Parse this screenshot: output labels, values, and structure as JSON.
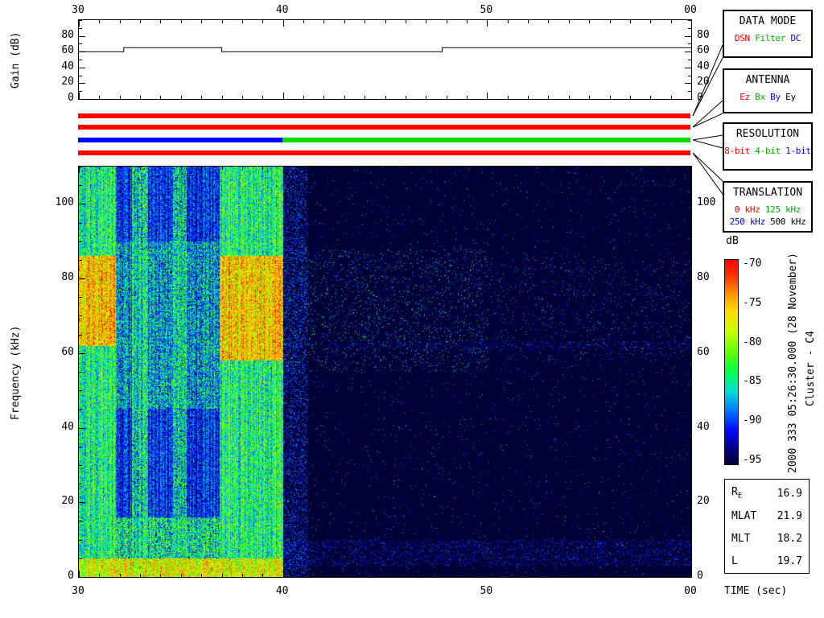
{
  "time_axis_label": "TIME (sec)",
  "side_text": {
    "datetime": "2000 333 05:26:30.000 (28 November)",
    "spacecraft": "Cluster - C4"
  },
  "control_boxes": [
    {
      "id": "data-mode",
      "title": "DATA MODE",
      "lines": [
        [
          {
            "text": "DSN",
            "color": "#ff0000"
          },
          {
            "text": "Filter",
            "color": "#00a800"
          },
          {
            "text": "DC",
            "color": "#0000ff"
          }
        ]
      ]
    },
    {
      "id": "antenna",
      "title": "ANTENNA",
      "lines": [
        [
          {
            "text": "Ez",
            "color": "#ff0000"
          },
          {
            "text": "Bx",
            "color": "#00a800"
          },
          {
            "text": "By",
            "color": "#0000ff"
          },
          {
            "text": "Ey",
            "color": "#000000"
          }
        ]
      ]
    },
    {
      "id": "resolution",
      "title": "RESOLUTION",
      "lines": [
        [
          {
            "text": "8-bit",
            "color": "#ff0000"
          },
          {
            "text": "4-bit",
            "color": "#00a800"
          },
          {
            "text": "1-bit",
            "color": "#0000ff"
          }
        ]
      ]
    },
    {
      "id": "translation",
      "title": "TRANSLATION",
      "lines": [
        [
          {
            "text": "0 kHz",
            "color": "#ff0000"
          },
          {
            "text": "125 kHz",
            "color": "#00a800"
          }
        ],
        [
          {
            "text": "250 kHz",
            "color": "#0000ff"
          },
          {
            "text": "500 kHz",
            "color": "#000000"
          }
        ]
      ]
    }
  ],
  "status_bars": [
    {
      "name": "data-mode-bar",
      "segments": [
        {
          "from": 30,
          "to": 60,
          "color": "#ff0000"
        }
      ]
    },
    {
      "name": "antenna-bar",
      "segments": [
        {
          "from": 30,
          "to": 60,
          "color": "#ff0000"
        }
      ]
    },
    {
      "name": "resolution-bar",
      "segments": [
        {
          "from": 30,
          "to": 40,
          "color": "#0000ff"
        },
        {
          "from": 40,
          "to": 60,
          "color": "#00dd00"
        }
      ]
    },
    {
      "name": "translation-bar",
      "segments": [
        {
          "from": 30,
          "to": 60,
          "color": "#ff0000"
        }
      ]
    }
  ],
  "orbit_box": {
    "rows": [
      {
        "label": "R",
        "sub": "E",
        "value": "16.9"
      },
      {
        "label": "MLAT",
        "value": "21.9"
      },
      {
        "label": "MLT",
        "value": "18.2"
      },
      {
        "label": "L",
        "value": "19.7"
      }
    ]
  },
  "chart_data": [
    {
      "type": "line",
      "name": "agc-gain",
      "ylabel": "Gain (dB)",
      "xlim": [
        30,
        60
      ],
      "ylim": [
        0,
        100
      ],
      "x_ticks": [
        {
          "v": 30,
          "label": "30"
        },
        {
          "v": 40,
          "label": "40"
        },
        {
          "v": 50,
          "label": "50"
        },
        {
          "v": 60,
          "label": "00"
        }
      ],
      "x_minor_step": 1,
      "y_ticks": [
        {
          "v": 0,
          "label": "0"
        },
        {
          "v": 20,
          "label": "20"
        },
        {
          "v": 40,
          "label": "40"
        },
        {
          "v": 60,
          "label": "60"
        },
        {
          "v": 80,
          "label": "80"
        }
      ],
      "y_minor_step": 10,
      "series": [
        {
          "name": "gain",
          "x": [
            30,
            32.2,
            32.2,
            37,
            37,
            47.8,
            47.8,
            60
          ],
          "y": [
            60,
            60,
            65,
            65,
            60,
            60,
            65,
            65
          ]
        }
      ]
    },
    {
      "type": "heatmap",
      "name": "wbd-spectrogram",
      "xlabel": "TIME (sec)",
      "ylabel": "Frequency (kHz)",
      "xlim": [
        30,
        60
      ],
      "ylim": [
        0,
        110
      ],
      "x_ticks": [
        {
          "v": 30,
          "label": "30"
        },
        {
          "v": 40,
          "label": "40"
        },
        {
          "v": 50,
          "label": "50"
        },
        {
          "v": 60,
          "label": "00"
        }
      ],
      "x_minor_step": 1,
      "y_ticks": [
        {
          "v": 0,
          "label": "0"
        },
        {
          "v": 20,
          "label": "20"
        },
        {
          "v": 40,
          "label": "40"
        },
        {
          "v": 60,
          "label": "60"
        },
        {
          "v": 80,
          "label": "80"
        },
        {
          "v": 100,
          "label": "100"
        }
      ],
      "y_minor_step": 5,
      "colorbar": {
        "title": "dB",
        "min": -95,
        "max": -70,
        "ticks": [
          {
            "v": -70,
            "label": "-70"
          },
          {
            "v": -75,
            "label": "-75"
          },
          {
            "v": -80,
            "label": "-80"
          },
          {
            "v": -85,
            "label": "-85"
          },
          {
            "v": -90,
            "label": "-90"
          },
          {
            "v": -95,
            "label": "-95"
          }
        ]
      },
      "colormap": [
        [
          0.0,
          0,
          0,
          55
        ],
        [
          0.08,
          0,
          0,
          135
        ],
        [
          0.17,
          0,
          10,
          255
        ],
        [
          0.27,
          0,
          130,
          255
        ],
        [
          0.36,
          0,
          225,
          210
        ],
        [
          0.45,
          0,
          255,
          80
        ],
        [
          0.55,
          100,
          255,
          0
        ],
        [
          0.65,
          200,
          255,
          0
        ],
        [
          0.75,
          255,
          220,
          0
        ],
        [
          0.84,
          255,
          140,
          0
        ],
        [
          0.92,
          255,
          50,
          0
        ],
        [
          1.0,
          255,
          0,
          0
        ]
      ],
      "background_db": -97,
      "column_jitter_db": 2.5,
      "column_jitter_t": [
        30,
        40
      ],
      "regions": [
        {
          "t": [
            30,
            40
          ],
          "f": [
            0,
            110
          ],
          "base": -84,
          "noise": 5
        },
        {
          "t": [
            31.8,
            36.9
          ],
          "f": [
            0,
            110
          ],
          "base": -90.5,
          "noise": 3.5
        },
        {
          "t": [
            31.8,
            36.9
          ],
          "f": [
            45,
            90
          ],
          "base": -85.5,
          "noise": 4.5,
          "prob": 0.55
        },
        {
          "t": [
            31.8,
            36.9
          ],
          "f": [
            0,
            16
          ],
          "base": -83.5,
          "noise": 4,
          "prob": 0.7
        },
        {
          "t": [
            32.6,
            33.4
          ],
          "f": [
            0,
            110
          ],
          "base": -84.5,
          "noise": 5,
          "prob": 0.8
        },
        {
          "t": [
            34.6,
            35.3
          ],
          "f": [
            0,
            110
          ],
          "base": -85,
          "noise": 5,
          "prob": 0.75
        },
        {
          "t": [
            30,
            31.8
          ],
          "f": [
            62,
            86
          ],
          "base": -75.5,
          "noise": 4.5
        },
        {
          "t": [
            36.9,
            40
          ],
          "f": [
            58,
            86
          ],
          "base": -76,
          "noise": 4.5
        },
        {
          "t": [
            30,
            40
          ],
          "f": [
            0,
            5
          ],
          "base": -78,
          "noise": 5
        },
        {
          "t": [
            40,
            41.2
          ],
          "f": [
            0,
            110
          ],
          "prob": 0.25,
          "base": -90,
          "noise": 3
        },
        {
          "t": [
            40,
            60
          ],
          "f": [
            0,
            110
          ],
          "prob": 0.012,
          "base": -89,
          "noise": 3
        },
        {
          "t": [
            40,
            50
          ],
          "f": [
            55,
            88
          ],
          "prob": 0.05,
          "base": -87.5,
          "noise": 4
        },
        {
          "t": [
            50,
            60
          ],
          "f": [
            58,
            85
          ],
          "prob": 0.02,
          "base": -88.5,
          "noise": 3
        },
        {
          "t": [
            40,
            60
          ],
          "f": [
            3,
            10
          ],
          "prob": 0.15,
          "base": -91,
          "noise": 2.5
        },
        {
          "t": [
            40,
            60
          ],
          "f": [
            61,
            63
          ],
          "prob": 0.1,
          "base": -91,
          "noise": 2
        }
      ]
    }
  ]
}
